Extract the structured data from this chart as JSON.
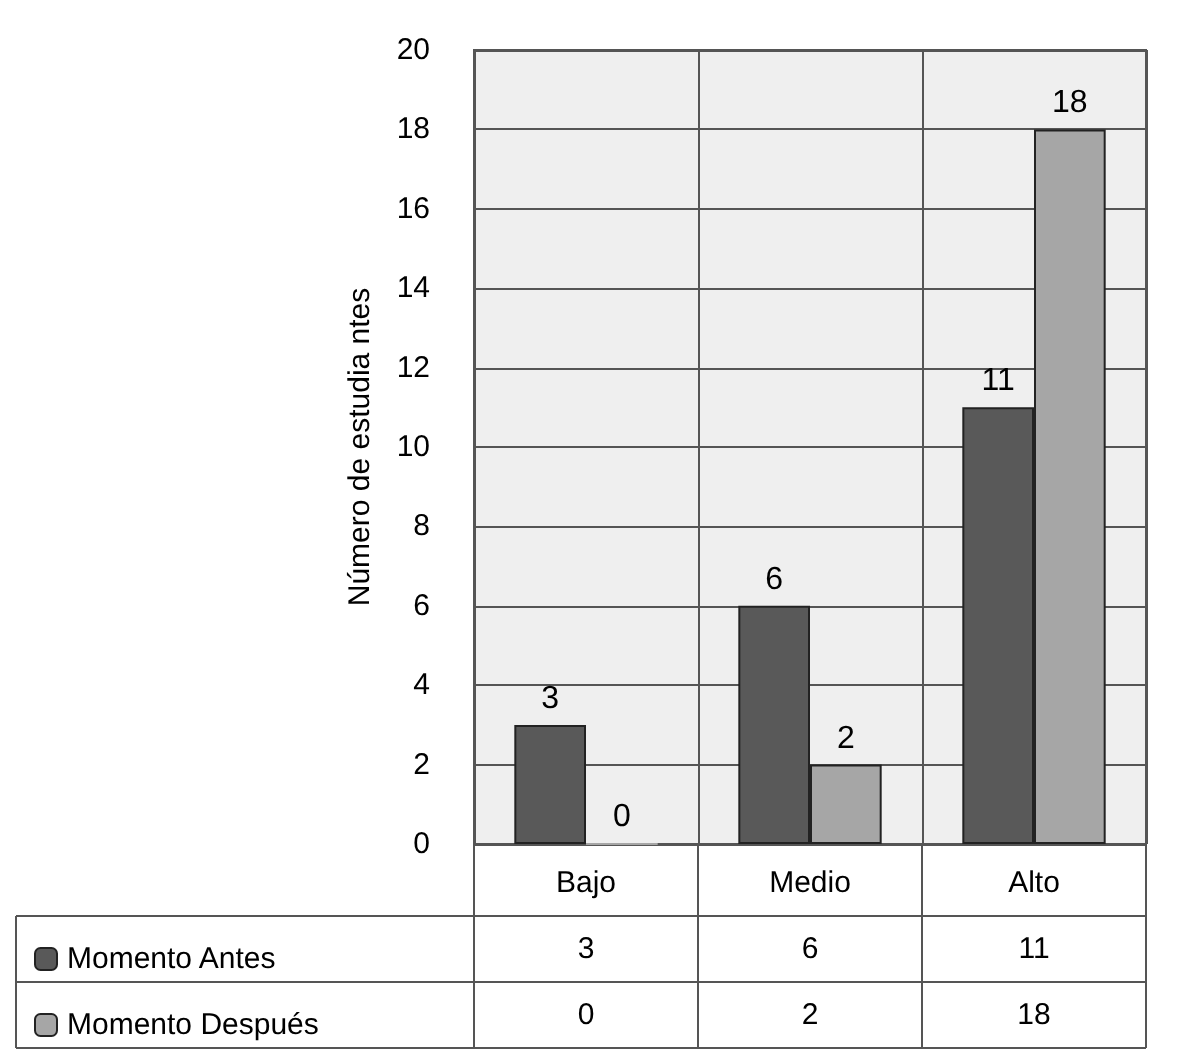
{
  "chart_data": {
    "type": "bar",
    "ylabel": "Número de estudia ntes",
    "categories": [
      "Bajo",
      "Medio",
      "Alto"
    ],
    "series": [
      {
        "name": "Momento Antes",
        "color": "#595959",
        "values": [
          3,
          6,
          11
        ],
        "value_labels": [
          "3",
          "6",
          "11"
        ]
      },
      {
        "name": "Momento Después",
        "color": "#a6a6a6",
        "values": [
          0,
          2,
          18
        ],
        "value_labels": [
          "0",
          "2",
          "18"
        ]
      }
    ],
    "ylim": [
      0,
      20
    ],
    "yticks": [
      0,
      2,
      4,
      6,
      8,
      10,
      12,
      14,
      16,
      18,
      20
    ],
    "grid": true,
    "legend": "bottom",
    "annotations": [
      "3",
      "6",
      "11",
      "0",
      "2",
      "18"
    ]
  }
}
